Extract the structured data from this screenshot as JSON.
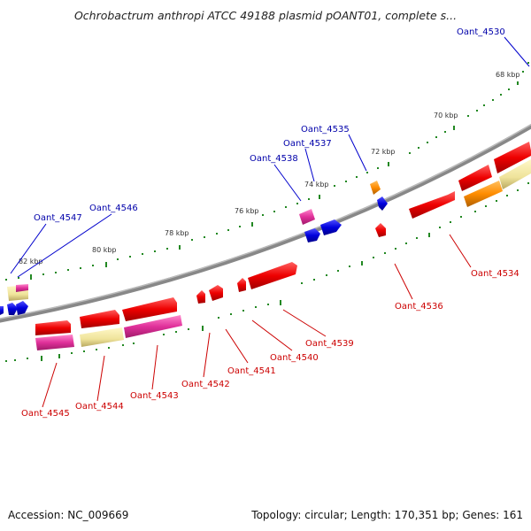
{
  "title": "Ochrobactrum anthropi ATCC 49188 plasmid pOANT01, complete s...",
  "footer": {
    "accession": "Accession: NC_009669",
    "summary": "Topology: circular; Length: 170,351 bp; Genes: 161"
  },
  "ticks": [
    "68 kbp",
    "70 kbp",
    "72 kbp",
    "74 kbp",
    "76 kbp",
    "78 kbp",
    "80 kbp",
    "82 kbp"
  ],
  "labels_top": [
    "Oant_4530",
    "Oant_4535",
    "Oant_4537",
    "Oant_4538",
    "Oant_4546",
    "Oant_4547"
  ],
  "labels_bottom": [
    "Oant_4534",
    "Oant_4536",
    "Oant_4539",
    "Oant_4540",
    "Oant_4541",
    "Oant_4542",
    "Oant_4543",
    "Oant_4544",
    "Oant_4545"
  ],
  "colors": {
    "forward": "#0000ee",
    "reverse": "#ee0000",
    "backbone": "#777777",
    "dots": "#228822",
    "orange": "#ff8c00",
    "magenta": "#e0309a",
    "khaki": "#efe39a"
  }
}
